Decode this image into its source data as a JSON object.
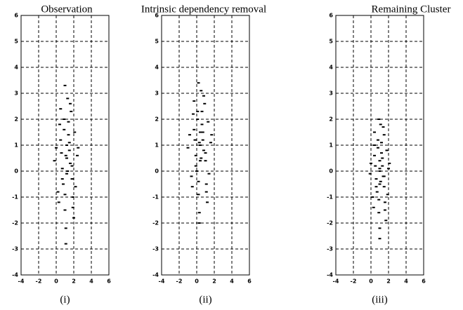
{
  "chart_data": [
    {
      "type": "scatter",
      "title": "Observation",
      "caption": "(i)",
      "color": "#000000",
      "grid": true,
      "xlim": [
        -4,
        6
      ],
      "xticks": [
        -4,
        -2,
        0,
        2,
        4,
        6
      ],
      "ylim": [
        -4,
        6
      ],
      "yticks": [
        -4,
        -3,
        -2,
        -1,
        0,
        1,
        2,
        3,
        4,
        5,
        6
      ],
      "x": [
        1.2,
        0.5,
        1.8,
        0.9,
        1.5,
        0.2,
        2.1,
        1.0,
        1.3,
        0.7,
        1.9,
        0.4,
        1.6,
        1.1,
        2.4,
        0.0,
        1.4,
        0.8,
        1.7,
        1.2,
        0.6,
        2.0,
        1.0,
        1.5,
        0.3,
        1.8,
        1.1,
        0.9,
        2.2,
        1.3,
        -0.2,
        1.6,
        0.7,
        1.4,
        2.5,
        1.0,
        1.2,
        0.5,
        1.9,
        1.1
      ],
      "y": [
        0.5,
        1.2,
        -0.3,
        2.0,
        0.8,
        -0.8,
        1.5,
        -1.5,
        2.8,
        0.1,
        -1.0,
        1.8,
        0.3,
        -2.2,
        0.6,
        0.9,
        1.4,
        -0.5,
        2.3,
        -0.1,
        0.7,
        -1.8,
        3.3,
        1.1,
        -1.2,
        0.2,
        -2.8,
        1.6,
        -0.6,
        0.0,
        0.4,
        2.6,
        -0.3,
        1.9,
        0.9,
        -0.9,
        1.0,
        2.4,
        -1.4,
        0.6
      ]
    },
    {
      "type": "scatter",
      "title": "Intrinsic dependency removal",
      "caption": "(ii)",
      "color": "#000000",
      "grid": true,
      "xlim": [
        -4,
        6
      ],
      "xticks": [
        -4,
        -2,
        0,
        2,
        4,
        6
      ],
      "ylim": [
        -4,
        6
      ],
      "yticks": [
        -4,
        -3,
        -2,
        -1,
        0,
        1,
        2,
        3,
        4,
        5,
        6
      ],
      "x": [
        0.4,
        -0.3,
        1.0,
        0.1,
        0.7,
        -0.6,
        1.3,
        0.2,
        0.5,
        -0.1,
        1.1,
        -0.4,
        0.8,
        0.3,
        1.6,
        -0.8,
        0.6,
        0.0,
        0.9,
        0.4,
        -0.2,
        1.2,
        0.2,
        0.7,
        -0.5,
        1.0,
        0.3,
        0.1,
        1.4,
        0.5,
        -1.0,
        0.8,
        -0.1,
        0.6,
        1.7,
        0.2,
        0.4,
        -0.3,
        1.1,
        0.3
      ],
      "y": [
        1.0,
        1.6,
        0.4,
        2.3,
        1.2,
        -0.2,
        1.9,
        -0.9,
        3.1,
        0.6,
        -0.5,
        2.2,
        0.8,
        -1.6,
        1.1,
        1.4,
        1.8,
        0.0,
        2.6,
        0.4,
        1.2,
        -1.2,
        3.4,
        1.5,
        -0.6,
        0.7,
        -2.0,
        2.0,
        -0.1,
        0.5,
        0.9,
        2.9,
        0.2,
        2.3,
        1.4,
        -0.4,
        1.5,
        2.7,
        -0.8,
        1.1
      ]
    },
    {
      "type": "scatter",
      "title": "Remaining Cluster",
      "caption": "(iii)",
      "color": "#000000",
      "grid": true,
      "xlim": [
        -4,
        6
      ],
      "xticks": [
        -4,
        -2,
        0,
        2,
        4,
        6
      ],
      "ylim": [
        -4,
        6
      ],
      "yticks": [
        -4,
        -3,
        -2,
        -1,
        0,
        1,
        2,
        3,
        4,
        5,
        6
      ],
      "x": [
        1.0,
        0.4,
        1.5,
        0.8,
        1.3,
        0.2,
        1.8,
        0.9,
        1.1,
        0.6,
        1.6,
        0.4,
        1.4,
        1.0,
        2.0,
        0.0,
        1.2,
        0.7,
        1.5,
        1.0,
        0.5,
        1.7,
        0.9,
        1.3,
        0.3,
        1.5,
        1.0,
        0.8,
        1.9,
        1.1,
        -0.1,
        1.4,
        0.6,
        1.2,
        2.1,
        0.9,
        1.0,
        0.4,
        1.6,
        1.0
      ],
      "y": [
        0.0,
        0.6,
        -0.6,
        1.2,
        0.2,
        -1.0,
        0.8,
        -1.6,
        1.8,
        -0.3,
        -1.2,
        1.0,
        -0.2,
        -2.2,
        0.1,
        0.3,
        0.7,
        -0.8,
        1.4,
        -0.5,
        0.2,
        -1.9,
        2.0,
        0.5,
        -1.4,
        -0.2,
        -2.6,
        0.9,
        -0.9,
        -0.4,
        -0.1,
        1.7,
        -0.6,
        1.1,
        0.3,
        -1.1,
        0.4,
        1.5,
        -1.5,
        0.1
      ]
    }
  ]
}
